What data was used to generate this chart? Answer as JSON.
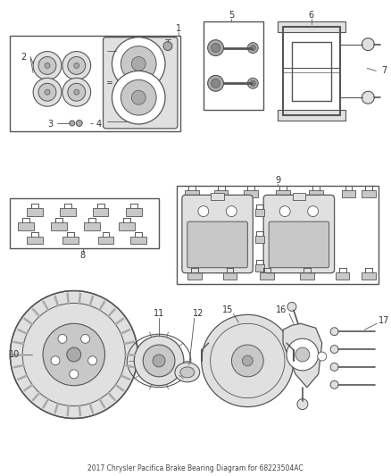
{
  "title": "2017 Chrysler Pacifica Brake Bearing Diagram for 68223504AC",
  "bg_color": "#ffffff",
  "lc": "#555555",
  "lc_dark": "#333333",
  "gray1": "#c8c8c8",
  "gray2": "#e0e0e0",
  "gray3": "#aaaaaa",
  "figsize": [
    4.38,
    5.33
  ],
  "dpi": 100
}
